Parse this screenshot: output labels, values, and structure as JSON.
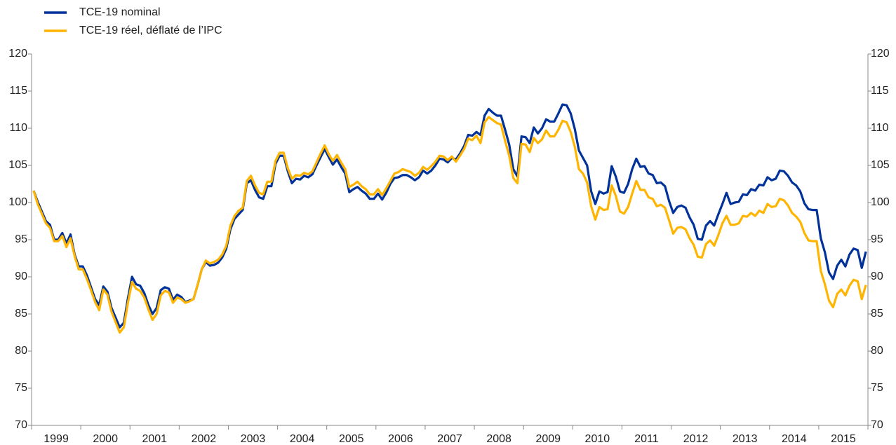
{
  "chart_data": {
    "type": "line",
    "categories": [
      null,
      null,
      null,
      null,
      null,
      null,
      "1999",
      null,
      null,
      null,
      null,
      null,
      null,
      null,
      null,
      null,
      null,
      null,
      "2000",
      null,
      null,
      null,
      null,
      null,
      null,
      null,
      null,
      null,
      null,
      null,
      "2001",
      null,
      null,
      null,
      null,
      null,
      null,
      null,
      null,
      null,
      null,
      null,
      "2002",
      null,
      null,
      null,
      null,
      null,
      null,
      null,
      null,
      null,
      null,
      null,
      "2003",
      null,
      null,
      null,
      null,
      null,
      null,
      null,
      null,
      null,
      null,
      null,
      "2004",
      null,
      null,
      null,
      null,
      null,
      null,
      null,
      null,
      null,
      null,
      null,
      "2005",
      null,
      null,
      null,
      null,
      null,
      null,
      null,
      null,
      null,
      null,
      null,
      "2006",
      null,
      null,
      null,
      null,
      null,
      null,
      null,
      null,
      null,
      null,
      null,
      "2007",
      null,
      null,
      null,
      null,
      null,
      null,
      null,
      null,
      null,
      null,
      null,
      "2008",
      null,
      null,
      null,
      null,
      null,
      null,
      null,
      null,
      null,
      null,
      null,
      "2009",
      null,
      null,
      null,
      null,
      null,
      null,
      null,
      null,
      null,
      null,
      null,
      "2010",
      null,
      null,
      null,
      null,
      null,
      null,
      null,
      null,
      null,
      null,
      null,
      "2011",
      null,
      null,
      null,
      null,
      null,
      null,
      null,
      null,
      null,
      null,
      null,
      "2012",
      null,
      null,
      null,
      null,
      null,
      null,
      null,
      null,
      null,
      null,
      null,
      "2013",
      null,
      null,
      null,
      null,
      null,
      null,
      null,
      null,
      null,
      null,
      null,
      "2014",
      null,
      null,
      null,
      null,
      null,
      null,
      null,
      null,
      null,
      null,
      null,
      "2015",
      null,
      null,
      null,
      null,
      null
    ],
    "series": [
      {
        "name": "TCE-19 nominal",
        "color": "#003299",
        "values": [
          101.6,
          100.1,
          98.8,
          97.5,
          97.0,
          95.0,
          95.0,
          95.9,
          94.5,
          95.7,
          93.0,
          91.4,
          91.4,
          90.2,
          88.6,
          87.0,
          86.2,
          88.7,
          88.0,
          85.8,
          84.5,
          83.2,
          83.8,
          87.1,
          90.0,
          89.0,
          88.8,
          87.8,
          86.2,
          85.0,
          85.8,
          88.2,
          88.6,
          88.4,
          86.9,
          87.6,
          87.3,
          86.6,
          86.8,
          87.0,
          88.9,
          91.0,
          92.0,
          91.5,
          91.6,
          91.9,
          92.6,
          93.8,
          96.4,
          97.8,
          98.4,
          99.0,
          102.6,
          103.0,
          101.7,
          100.7,
          100.5,
          102.2,
          102.2,
          105.2,
          106.3,
          106.3,
          104.2,
          102.6,
          103.2,
          103.1,
          103.6,
          103.4,
          103.8,
          105.0,
          106.1,
          107.2,
          106.1,
          105.1,
          105.8,
          104.8,
          103.9,
          101.4,
          101.8,
          102.1,
          101.6,
          101.2,
          100.5,
          100.5,
          101.2,
          100.4,
          101.3,
          102.5,
          103.3,
          103.4,
          103.7,
          103.7,
          103.4,
          103.0,
          103.4,
          104.3,
          103.9,
          104.3,
          105.0,
          105.9,
          105.8,
          105.4,
          106.0,
          105.8,
          106.6,
          107.6,
          109.1,
          109.0,
          109.5,
          109.1,
          111.7,
          112.6,
          112.1,
          111.7,
          111.7,
          109.8,
          107.8,
          104.5,
          103.5,
          108.9,
          108.8,
          108.0,
          110.1,
          109.3,
          110.0,
          111.2,
          110.9,
          110.9,
          112.0,
          113.2,
          113.1,
          112.0,
          109.9,
          107.0,
          106.0,
          105.0,
          101.5,
          99.8,
          101.5,
          101.2,
          101.4,
          104.9,
          103.5,
          101.5,
          101.3,
          102.5,
          104.5,
          105.9,
          104.8,
          104.9,
          103.9,
          103.7,
          102.6,
          102.7,
          102.2,
          100.2,
          98.6,
          99.4,
          99.6,
          99.3,
          98.0,
          97.0,
          95.1,
          95.0,
          96.9,
          97.5,
          96.9,
          98.4,
          99.8,
          101.3,
          99.8,
          100.0,
          100.1,
          101.1,
          101.0,
          101.8,
          101.6,
          102.4,
          102.3,
          103.4,
          103.0,
          103.2,
          104.3,
          104.2,
          103.6,
          102.7,
          102.3,
          101.5,
          99.9,
          99.1,
          99.0,
          99.0,
          95.2,
          93.3,
          90.6,
          89.7,
          91.5,
          92.3,
          91.4,
          93.0,
          93.8,
          93.6,
          91.2,
          93.4
        ]
      },
      {
        "name": "TCE-19 réel, déflaté de l’IPC",
        "color": "#ffb400",
        "values": [
          101.6,
          99.8,
          98.5,
          97.2,
          96.6,
          94.8,
          94.8,
          95.5,
          94.0,
          95.2,
          92.8,
          91.0,
          91.0,
          89.7,
          88.2,
          86.6,
          85.5,
          88.3,
          87.6,
          85.3,
          83.9,
          82.5,
          83.2,
          86.5,
          89.3,
          88.4,
          88.1,
          87.2,
          85.6,
          84.2,
          85.0,
          87.5,
          88.1,
          87.9,
          86.5,
          87.2,
          87.0,
          86.5,
          86.7,
          87.0,
          88.9,
          91.0,
          92.2,
          91.8,
          92.0,
          92.3,
          93.0,
          94.2,
          96.9,
          98.2,
          98.9,
          99.3,
          102.9,
          103.6,
          102.3,
          101.3,
          101.1,
          102.8,
          102.8,
          105.6,
          106.7,
          106.7,
          104.6,
          103.2,
          103.7,
          103.6,
          104.0,
          103.8,
          104.2,
          105.4,
          106.6,
          107.7,
          106.5,
          105.6,
          106.4,
          105.4,
          104.5,
          102.1,
          102.4,
          102.8,
          102.2,
          101.8,
          101.1,
          101.1,
          101.8,
          101.0,
          101.9,
          102.9,
          103.9,
          104.1,
          104.5,
          104.3,
          104.1,
          103.6,
          104.0,
          104.8,
          104.4,
          104.9,
          105.5,
          106.3,
          106.2,
          105.7,
          106.2,
          105.5,
          106.3,
          107.2,
          108.6,
          108.4,
          109.0,
          108.0,
          110.8,
          111.5,
          111.1,
          110.7,
          110.5,
          108.3,
          106.3,
          103.3,
          102.6,
          107.9,
          107.8,
          106.8,
          108.7,
          108.0,
          108.5,
          109.7,
          108.9,
          108.9,
          109.8,
          111.0,
          110.8,
          109.5,
          107.5,
          104.5,
          103.9,
          102.7,
          99.5,
          97.7,
          99.4,
          99.0,
          99.1,
          102.3,
          100.9,
          98.8,
          98.5,
          99.4,
          101.2,
          102.9,
          101.7,
          101.7,
          100.7,
          100.5,
          99.5,
          99.7,
          99.3,
          97.6,
          95.8,
          96.6,
          96.7,
          96.4,
          95.2,
          94.3,
          92.7,
          92.6,
          94.4,
          94.9,
          94.2,
          95.6,
          97.2,
          98.2,
          97.0,
          97.0,
          97.2,
          98.2,
          98.1,
          98.6,
          98.2,
          98.9,
          98.6,
          99.8,
          99.4,
          99.5,
          100.5,
          100.3,
          99.6,
          98.6,
          98.1,
          97.4,
          95.9,
          94.9,
          94.8,
          94.8,
          90.8,
          89.0,
          86.8,
          85.9,
          87.7,
          88.3,
          87.5,
          88.8,
          89.6,
          89.4,
          87.0,
          88.9
        ]
      }
    ],
    "ylim": [
      70,
      120
    ],
    "yticks": [
      70,
      75,
      80,
      85,
      90,
      95,
      100,
      105,
      110,
      115,
      120
    ],
    "grid": false,
    "legend": "top-left"
  }
}
